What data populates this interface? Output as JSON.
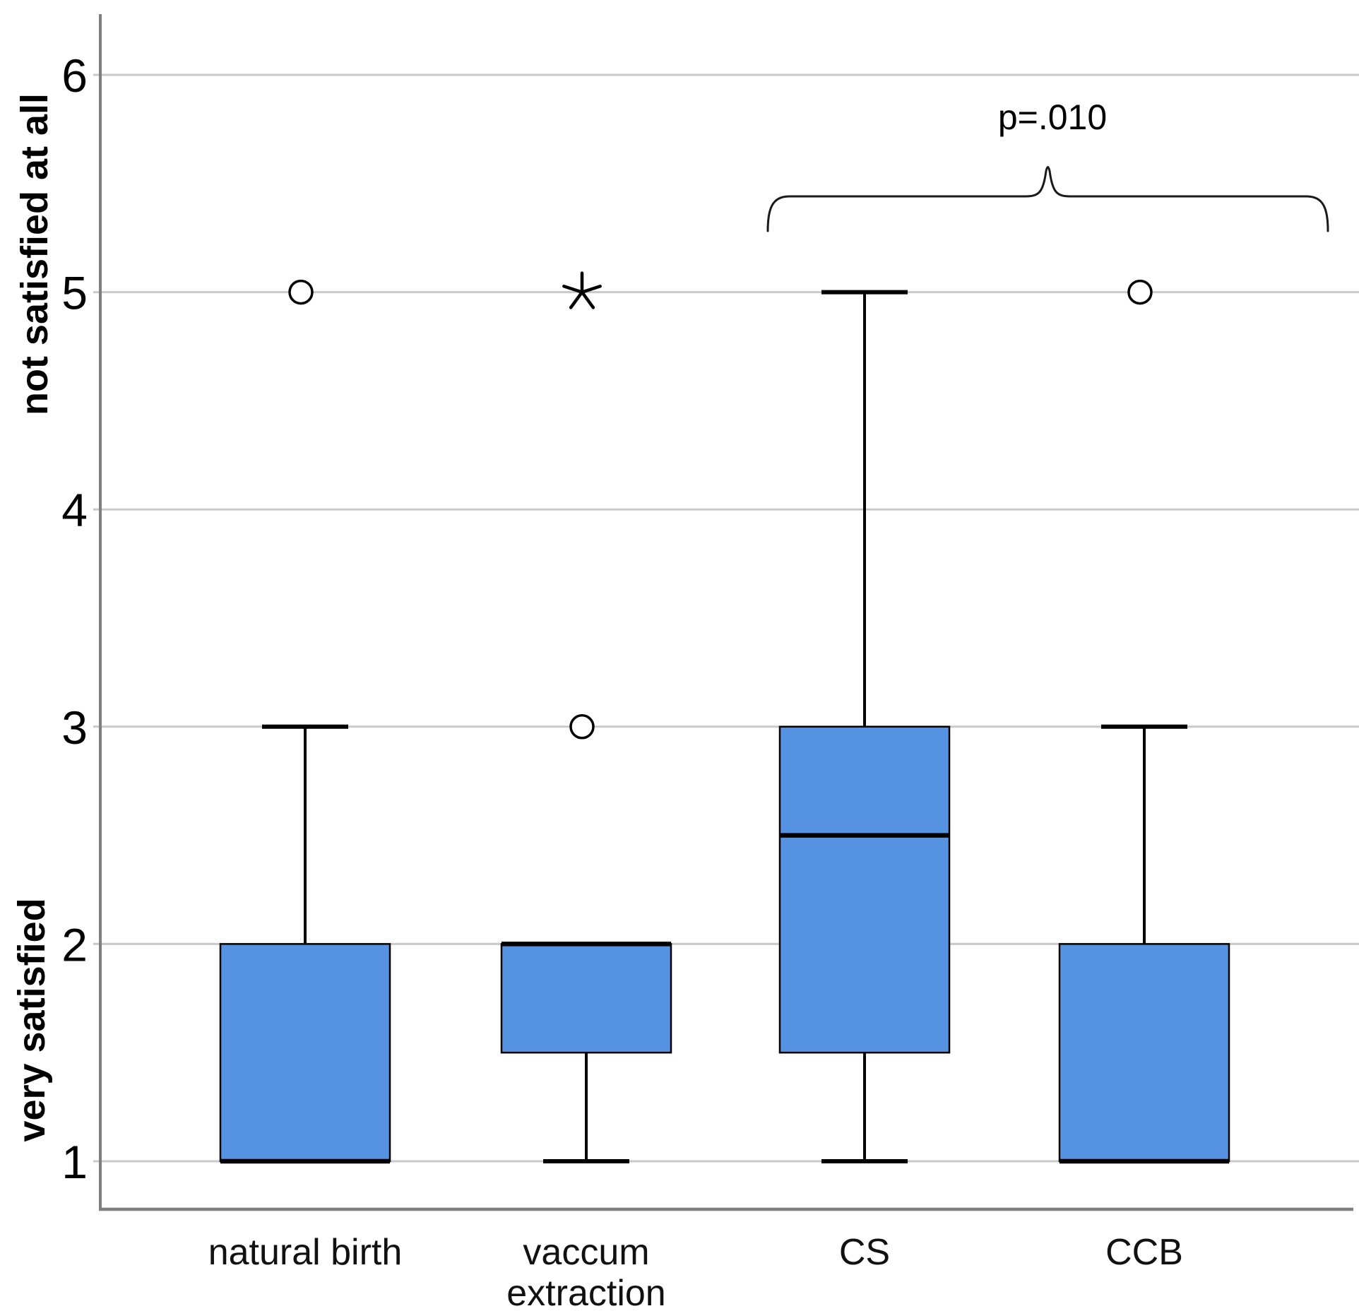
{
  "chart_data": {
    "type": "boxplot",
    "title": "",
    "y_axis": {
      "top_label": "not satisfied at all",
      "bottom_label": "very satisfied",
      "ticks": [
        1,
        2,
        3,
        4,
        5,
        6
      ],
      "range": [
        0.8,
        6.3
      ],
      "grid": true
    },
    "x_axis": {
      "categories": [
        "natural birth",
        "vaccum\nextraction",
        "CS",
        "CCB"
      ]
    },
    "boxes": [
      {
        "category": "natural birth",
        "q1": 1,
        "median": 1,
        "q3": 2,
        "whisker_low": null,
        "whisker_high": 3,
        "outliers": [
          5
        ],
        "extremes": []
      },
      {
        "category": "vaccum extraction",
        "q1": 1.5,
        "median": 2,
        "q3": 2,
        "whisker_low": 1,
        "whisker_high": null,
        "outliers": [
          3
        ],
        "extremes": [
          5
        ]
      },
      {
        "category": "CS",
        "q1": 1.5,
        "median": 2.5,
        "q3": 3,
        "whisker_low": 1,
        "whisker_high": 5,
        "outliers": [],
        "extremes": []
      },
      {
        "category": "CCB",
        "q1": 1,
        "median": 1,
        "q3": 2,
        "whisker_low": null,
        "whisker_high": 3,
        "outliers": [
          5
        ],
        "extremes": []
      }
    ],
    "annotation": {
      "text": "p=.010",
      "groups": [
        "CS",
        "CCB"
      ]
    },
    "colors": {
      "box_fill": "#5693E2",
      "box_border": "#000000",
      "median": "#000000",
      "whisker": "#000000",
      "gridline": "#C9C9C9",
      "axis_line": "#7F7F7F",
      "outlier": "#000000"
    }
  }
}
